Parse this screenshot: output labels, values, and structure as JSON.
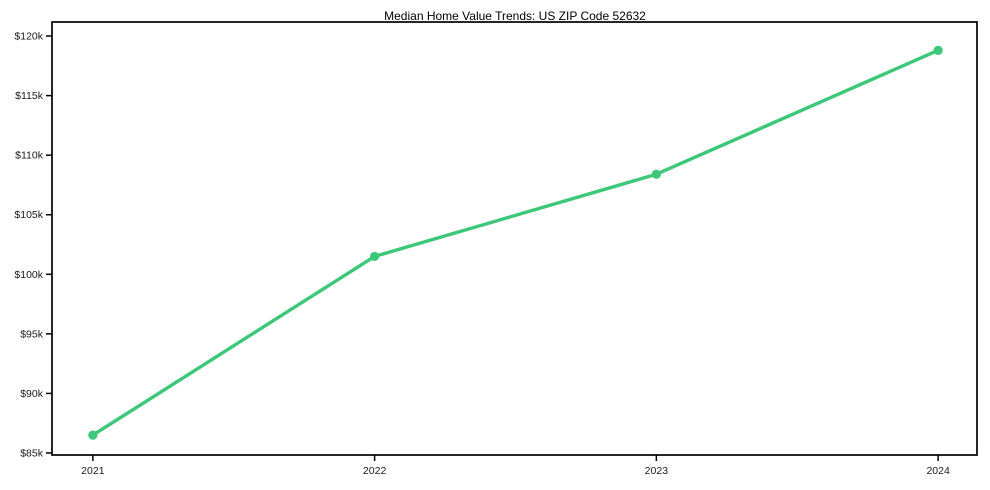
{
  "chart_data": {
    "type": "line",
    "title": "Median Home Value Trends: US ZIP Code 52632",
    "categories": [
      "2021",
      "2022",
      "2023",
      "2024"
    ],
    "x_values": [
      2021,
      2022,
      2023,
      2024
    ],
    "values": [
      86500,
      101500,
      108400,
      118800
    ],
    "y_tick_values": [
      85000,
      90000,
      95000,
      100000,
      105000,
      110000,
      115000,
      120000
    ],
    "y_tick_labels": [
      "$85k",
      "$90k",
      "$95k",
      "$100k",
      "$105k",
      "$110k",
      "$115k",
      "$120k"
    ],
    "xlim": [
      2020.855,
      2024.138
    ],
    "ylim": [
      84830,
      121180
    ],
    "xlabel": "",
    "ylabel": "",
    "grid": false,
    "legend": false,
    "line_color": "#3cc878",
    "marker": "circle",
    "axis_color": "#000000",
    "background_color": "#ffffff"
  }
}
